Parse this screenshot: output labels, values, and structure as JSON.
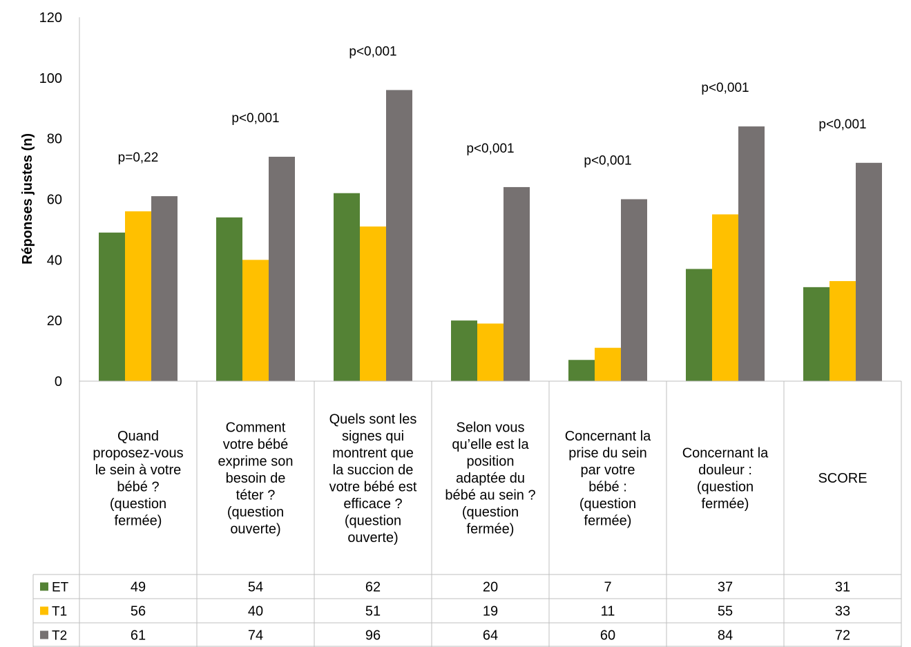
{
  "chart_data": {
    "type": "bar",
    "ylabel": "Réponses  justes (n)",
    "ylim": [
      0,
      120
    ],
    "yticks": [
      0,
      20,
      40,
      60,
      80,
      100,
      120
    ],
    "grid": false,
    "legend": "data-table-left",
    "categories": [
      [
        "Quand",
        "proposez-vous",
        "le sein à votre",
        "bébé ?",
        "(question",
        "fermée)"
      ],
      [
        "Comment",
        "votre bébé",
        "exprime son",
        "besoin de",
        "téter ?",
        "(question",
        "ouverte)"
      ],
      [
        "Quels sont les",
        "signes qui",
        "montrent que",
        "la succion de",
        "votre bébé est",
        "efficace ?",
        "(question",
        "ouverte)"
      ],
      [
        "Selon vous",
        "qu’elle est la",
        "position",
        "adaptée du",
        "bébé au sein ?",
        "(question",
        "fermée)"
      ],
      [
        "Concernant la",
        "prise du sein",
        "par votre",
        "bébé :",
        "(question",
        "fermée)"
      ],
      [
        "Concernant la",
        "douleur :",
        "(question",
        "fermée)"
      ],
      [
        "SCORE"
      ]
    ],
    "series": [
      {
        "name": "ET",
        "color": "#548235",
        "values": [
          49,
          54,
          62,
          20,
          7,
          37,
          31
        ]
      },
      {
        "name": "T1",
        "color": "#FFC000",
        "values": [
          56,
          40,
          51,
          19,
          11,
          55,
          33
        ]
      },
      {
        "name": "T2",
        "color": "#767171",
        "values": [
          61,
          74,
          96,
          64,
          60,
          84,
          72
        ]
      }
    ],
    "annotations": [
      "p=0,22",
      "p<0,001",
      "p<0,001",
      "p<0,001",
      "p<0,001",
      "p<0,001",
      "p<0,001"
    ]
  }
}
